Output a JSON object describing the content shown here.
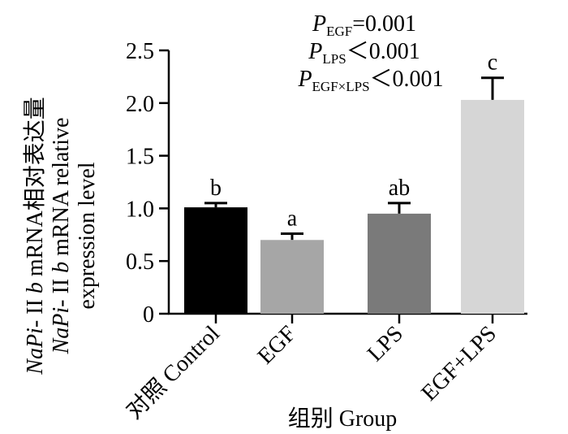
{
  "chart_data": {
    "type": "bar",
    "categories": [
      "对照 Control",
      "EGF",
      "LPS",
      "EGF+LPS"
    ],
    "values": [
      1.01,
      0.7,
      0.95,
      2.03
    ],
    "errors": [
      0.04,
      0.06,
      0.1,
      0.21
    ],
    "significance": [
      "b",
      "a",
      "ab",
      "c"
    ],
    "bar_colors": [
      "#000000",
      "#a6a6a6",
      "#7a7a7a",
      "#d6d6d6"
    ],
    "ylim": [
      0,
      2.5
    ],
    "yticks": [
      "0",
      "0.5",
      "1.0",
      "1.5",
      "2.0",
      "2.5"
    ],
    "ylabel": {
      "line1": {
        "gene_italic": "NaPi-",
        "roman": " II ",
        "b": "b",
        "suffix": " mRNA相对表达量"
      },
      "line2": {
        "gene_italic": "NaPi-",
        "roman": " II ",
        "b": "b",
        "suffix": " mRNA relative"
      },
      "line3": "expression level"
    },
    "xlabel": "组别 Group",
    "stats": [
      {
        "p": "P",
        "sub": "EGF",
        "rest": "=0.001"
      },
      {
        "p": "P",
        "sub": "LPS",
        "rest": "＜0.001"
      },
      {
        "p": "P",
        "sub": "EGF×LPS",
        "rest": "＜0.001"
      }
    ]
  }
}
